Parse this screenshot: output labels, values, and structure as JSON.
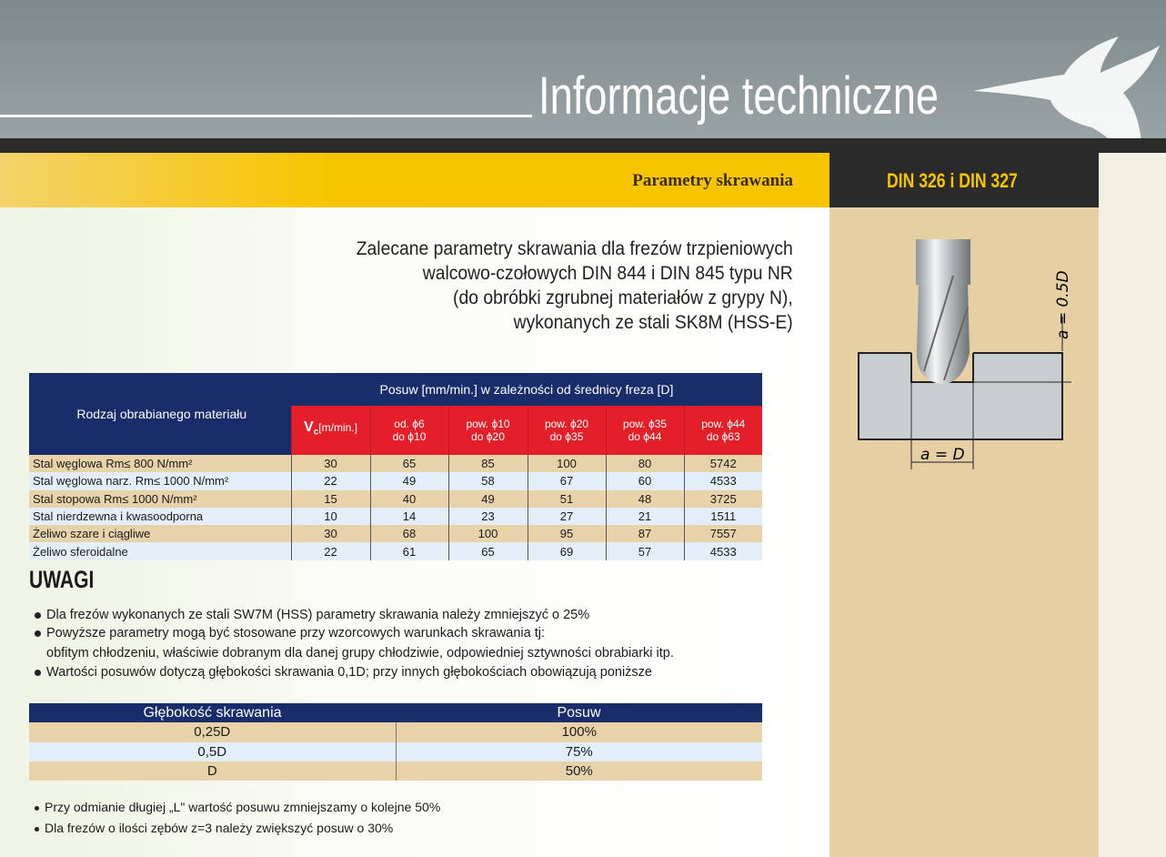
{
  "header": {
    "title": "Informacje techniczne",
    "section": "Parametry skrawania",
    "standard": "DIN 326 i DIN 327"
  },
  "intro": [
    "Zalecane parametry skrawania dla frezów trzpieniowych",
    "walcowo-czołowych DIN 844 i DIN 845 typu NR",
    "(do obróbki zgrubnej materiałów z grypy N),",
    "wykonanych ze stali SK8M (HSS-E)"
  ],
  "table1": {
    "col_material": "Rodzaj obrabianego materiału",
    "group_header": "Posuw [mm/min.] w zależności od średnicy freza [D]",
    "vc_symbol": "V",
    "vc_sub": "c",
    "vc_unit": "[m/min.]",
    "diameters": [
      [
        "od. ϕ6",
        "do ϕ10"
      ],
      [
        "pow. ϕ10",
        "do ϕ20"
      ],
      [
        "pow. ϕ20",
        "do ϕ35"
      ],
      [
        "pow. ϕ35",
        "do ϕ44"
      ],
      [
        "pow. ϕ44",
        "do ϕ63"
      ]
    ],
    "rows": [
      {
        "material": "Stal węglowa Rm≤ 800 N/mm²",
        "values": [
          "30",
          "65",
          "85",
          "100",
          "80",
          "5742"
        ]
      },
      {
        "material": "Stal węglowa narz. Rm≤ 1000 N/mm²",
        "values": [
          "22",
          "49",
          "58",
          "67",
          "60",
          "4533"
        ]
      },
      {
        "material": "Stal stopowa Rm≤ 1000 N/mm²",
        "values": [
          "15",
          "40",
          "49",
          "51",
          "48",
          "3725"
        ]
      },
      {
        "material": "Stal nierdzewna i kwasoodporna",
        "values": [
          "10",
          "14",
          "23",
          "27",
          "21",
          "1511"
        ]
      },
      {
        "material": "Żeliwo szare i ciągliwe",
        "values": [
          "30",
          "68",
          "100",
          "95",
          "87",
          "7557"
        ]
      },
      {
        "material": "Żeliwo sferoidalne",
        "values": [
          "22",
          "61",
          "65",
          "69",
          "57",
          "4533"
        ]
      }
    ]
  },
  "notes": {
    "heading": "UWAGI",
    "items": [
      "Dla frezów wykonanych ze stali SW7M (HSS) parametry skrawania należy zmniejszyć o 25%",
      "Powyższe parametry mogą być stosowane przy wzorcowych warunkach skrawania tj:",
      "obfitym chłodzeniu, właściwie dobranym dla danej grupy chłodziwie, odpowiedniej sztywności obrabiarki itp.",
      "Wartości posuwów dotyczą głębokości skrawania 0,1D; przy innych głębokościach obowiązują poniższe"
    ]
  },
  "table2": {
    "headers": [
      "Głębokość skrawania",
      "Posuw"
    ],
    "rows": [
      [
        "0,25D",
        "100%"
      ],
      [
        "0,5D",
        "75%"
      ],
      [
        "D",
        "50%"
      ]
    ]
  },
  "footnotes": [
    "Przy odmianie długiej „L\" wartość posuwu zmniejszamy o kolejne 50%",
    "Dla frezów o ilości zębów z=3 należy zwiększyć posuw o 30%"
  ],
  "diagram": {
    "depth_label": "a = 0.5D",
    "width_label": "a = D"
  },
  "colors": {
    "header_gray": "#8c9598",
    "yellow": "#f6c500",
    "table_blue": "#1a2d6b",
    "table_red": "#e3202a",
    "row_tan": "#e7d2aa",
    "row_blue": "#e3eef8",
    "side_tan": "#e6cfa3"
  }
}
